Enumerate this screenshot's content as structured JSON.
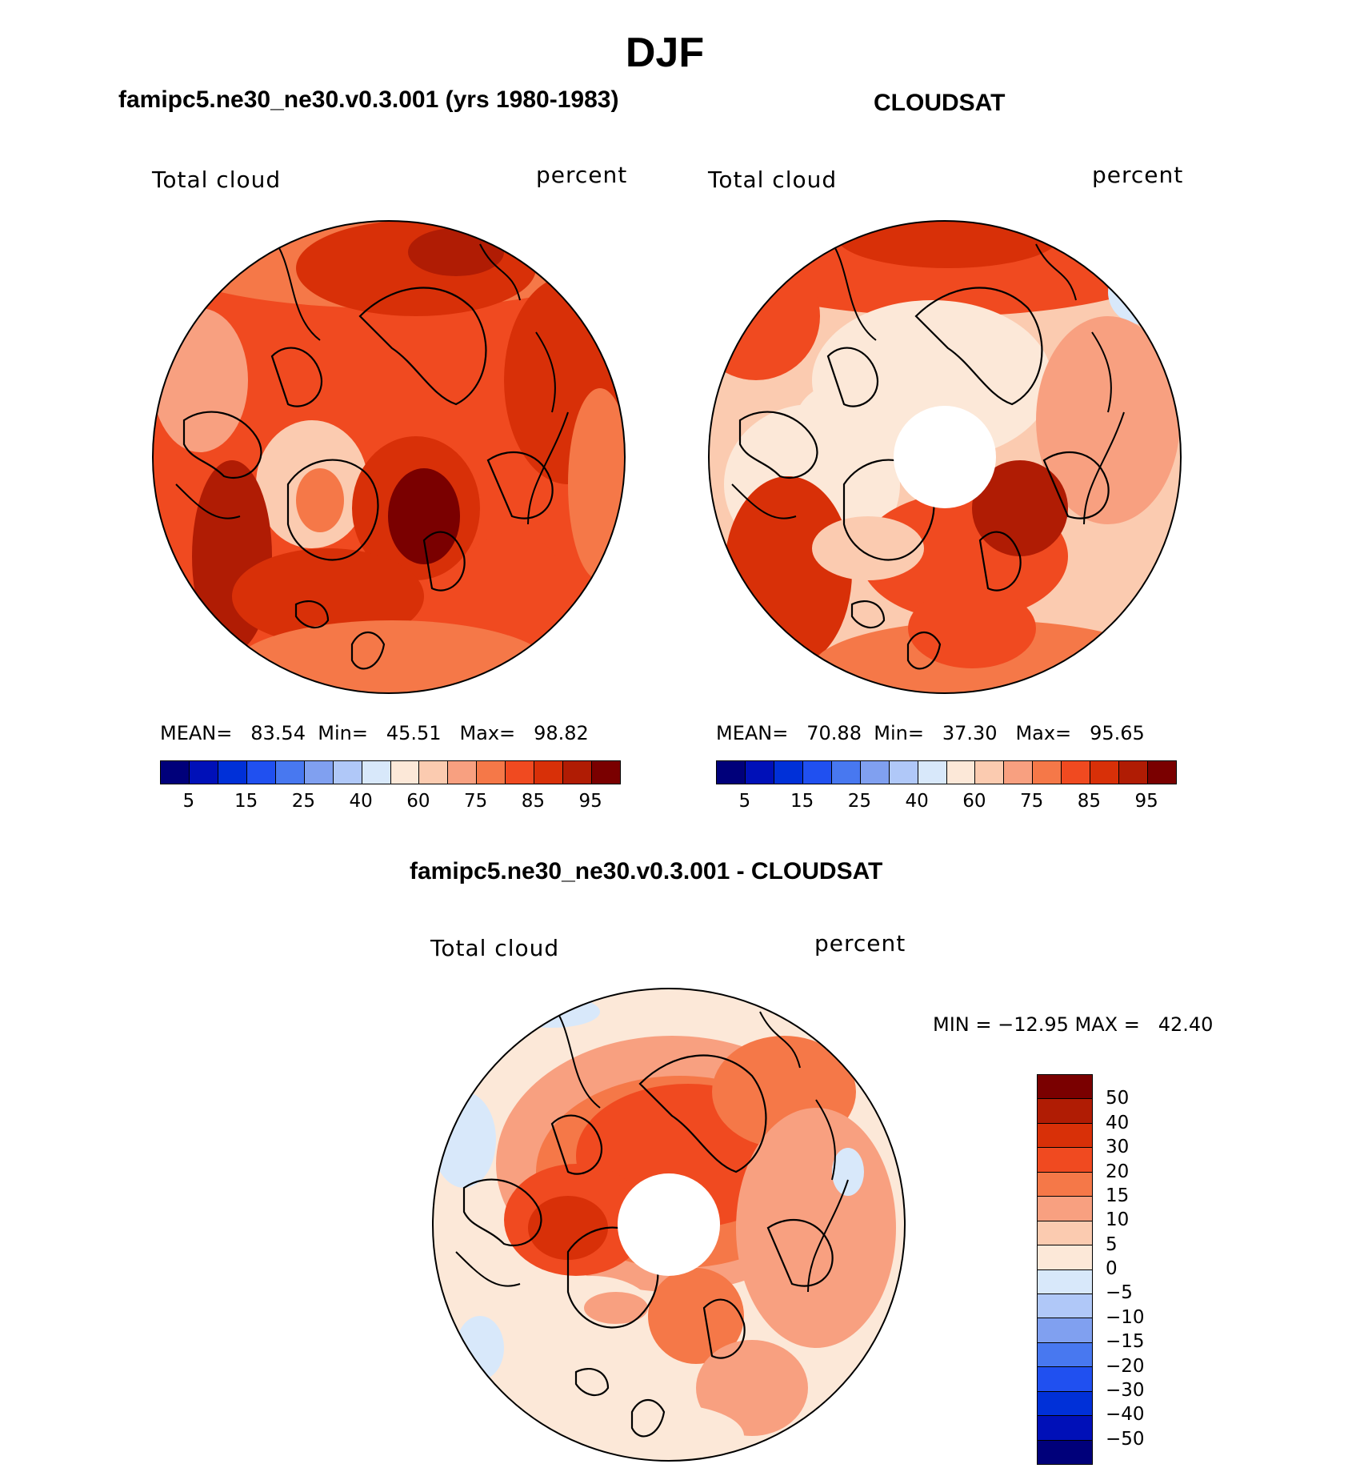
{
  "title": "DJF",
  "panels": [
    {
      "title": "famipc5.ne30_ne30.v0.3.001 (yrs 1980-1983)",
      "field": "Total cloud",
      "units": "percent",
      "stats": {
        "mean_label": "MEAN=",
        "mean": "83.54",
        "min_label": "Min=",
        "min": "45.51",
        "max_label": "Max=",
        "max": "98.82"
      },
      "has_hole": false
    },
    {
      "title": "CLOUDSAT",
      "field": "Total cloud",
      "units": "percent",
      "stats": {
        "mean_label": "MEAN=",
        "mean": "70.88",
        "min_label": "Min=",
        "min": "37.30",
        "max_label": "Max=",
        "max": "95.65"
      },
      "has_hole": true
    },
    {
      "title": "famipc5.ne30_ne30.v0.3.001 - CLOUDSAT",
      "field": "Total cloud",
      "units": "percent",
      "minmax_text": "MIN = −12.95 MAX =   42.40",
      "has_hole": true
    }
  ],
  "colorbar_abs": {
    "colors": [
      "#00007a",
      "#0010b8",
      "#0030d8",
      "#2050f0",
      "#4878f0",
      "#80a0f0",
      "#b0c8f8",
      "#d8e8fa",
      "#fce8d8",
      "#fbcbb0",
      "#f8a080",
      "#f57848",
      "#f04a20",
      "#d83008",
      "#b01c04",
      "#7a0000"
    ],
    "labels": [
      "5",
      "15",
      "25",
      "40",
      "60",
      "75",
      "85",
      "95"
    ]
  },
  "colorbar_diff": {
    "colors": [
      "#7a0000",
      "#b01c04",
      "#d83008",
      "#f04a20",
      "#f57848",
      "#f8a080",
      "#fbcbb0",
      "#fce8d8",
      "#d8e8fa",
      "#b0c8f8",
      "#80a0f0",
      "#4878f0",
      "#2050f0",
      "#0030d8",
      "#0010b8",
      "#00007a"
    ],
    "labels": [
      "50",
      "40",
      "30",
      "20",
      "15",
      "10",
      "5",
      "0",
      "−5",
      "−10",
      "−15",
      "−20",
      "−30",
      "−40",
      "−50"
    ]
  },
  "chart_data": {
    "type": "heatmap",
    "projection": "north polar stereographic",
    "season": "DJF",
    "variable": "Total cloud",
    "units": "percent",
    "maps": [
      {
        "title": "famipc5.ne30_ne30.v0.3.001 (yrs 1980-1983)",
        "mean": 83.54,
        "min": 45.51,
        "max": 98.82,
        "levels": [
          5,
          10,
          15,
          20,
          25,
          30,
          40,
          50,
          60,
          70,
          75,
          80,
          85,
          90,
          95
        ]
      },
      {
        "title": "CLOUDSAT",
        "mean": 70.88,
        "min": 37.3,
        "max": 95.65,
        "levels": [
          5,
          10,
          15,
          20,
          25,
          30,
          40,
          50,
          60,
          70,
          75,
          80,
          85,
          90,
          95
        ]
      },
      {
        "title": "famipc5.ne30_ne30.v0.3.001 - CLOUDSAT",
        "min": -12.95,
        "max": 42.4,
        "levels": [
          -50,
          -40,
          -30,
          -20,
          -15,
          -10,
          -5,
          0,
          5,
          10,
          15,
          20,
          30,
          40,
          50
        ]
      }
    ]
  }
}
